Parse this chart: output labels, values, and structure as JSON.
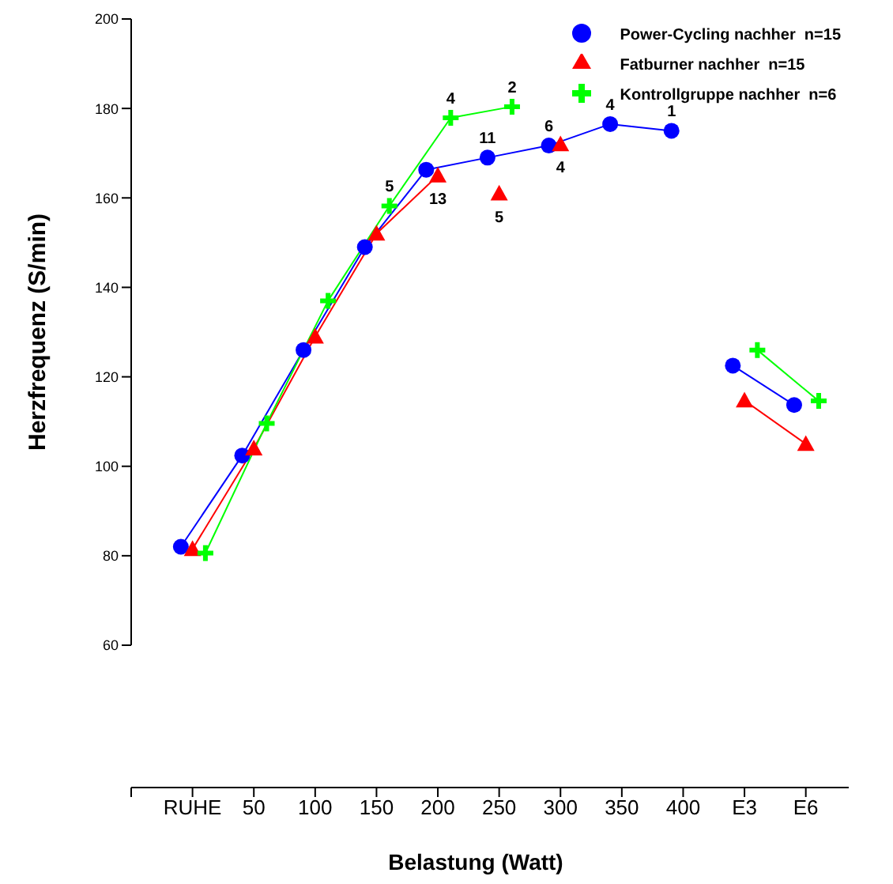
{
  "chart_data": {
    "type": "line",
    "xlabel": "Belastung (Watt)",
    "ylabel": "Herzfrequenz (S/min)",
    "categories": [
      "RUHE",
      "50",
      "100",
      "150",
      "200",
      "250",
      "300",
      "350",
      "400",
      "E3",
      "E6"
    ],
    "ylim": [
      60,
      200
    ],
    "yticks": [
      60,
      80,
      100,
      120,
      140,
      160,
      180,
      200
    ],
    "legend": "top right",
    "series": [
      {
        "name": "Power-Cycling nachher  n=15",
        "color": "#0000ff",
        "marker": "circle",
        "values": [
          82,
          102.4,
          126,
          149,
          166.3,
          169,
          171.7,
          176.5,
          175,
          null,
          null
        ]
      },
      {
        "color": "#0000ff",
        "marker": "circle",
        "values": [
          null,
          null,
          null,
          null,
          null,
          null,
          null,
          null,
          null,
          122.5,
          113.7
        ]
      },
      {
        "name": "Fatburner nachher  n=15",
        "color": "#ff0000",
        "marker": "triangle",
        "values": [
          81.5,
          104,
          129,
          152,
          165,
          null,
          null,
          null,
          null,
          null,
          null
        ]
      },
      {
        "type": "scatter",
        "color": "#ff0000",
        "marker": "triangle",
        "values": [
          null,
          null,
          null,
          null,
          null,
          161,
          172,
          null,
          null,
          null,
          null
        ]
      },
      {
        "color": "#ff0000",
        "marker": "triangle",
        "values": [
          null,
          null,
          null,
          null,
          null,
          null,
          null,
          null,
          null,
          114.7,
          105
        ]
      },
      {
        "name": "Kontrollgruppe nachher  n=6",
        "color": "#00ff00",
        "marker": "cross",
        "values": [
          80.6,
          109.6,
          137,
          158.2,
          177.9,
          180.4,
          null,
          null,
          null,
          null,
          null
        ]
      },
      {
        "color": "#00ff00",
        "marker": "cross",
        "values": [
          null,
          null,
          null,
          null,
          null,
          null,
          null,
          null,
          null,
          126,
          114.6
        ]
      }
    ],
    "annotations": [
      {
        "text": "5",
        "x": "150",
        "y": 158.2
      },
      {
        "text": "4",
        "x": "200",
        "y": 177.9
      },
      {
        "text": "13",
        "x": "200",
        "y": 165
      },
      {
        "text": "2",
        "x": "250",
        "y": 180.4
      },
      {
        "text": "11",
        "x": "250",
        "y": 169
      },
      {
        "text": "5",
        "x": "250",
        "y": 161
      },
      {
        "text": "6",
        "x": "300",
        "y": 171.7
      },
      {
        "text": "4",
        "x": "300",
        "y": 172
      },
      {
        "text": "4",
        "x": "350",
        "y": 176.5
      },
      {
        "text": "1",
        "x": "400",
        "y": 175
      }
    ]
  }
}
